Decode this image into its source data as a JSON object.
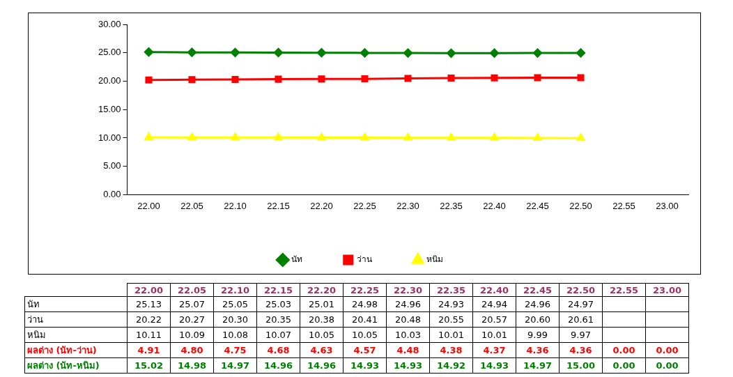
{
  "chart_data": {
    "type": "line",
    "categories": [
      "22.00",
      "22.05",
      "22.10",
      "22.15",
      "22.20",
      "22.25",
      "22.30",
      "22.35",
      "22.40",
      "22.45",
      "22.50",
      "22.55",
      "23.00"
    ],
    "ylim": [
      0,
      30
    ],
    "yticks": [
      {
        "value": 0,
        "label": "0.00"
      },
      {
        "value": 5,
        "label": "5.00"
      },
      {
        "value": 10,
        "label": "10.00"
      },
      {
        "value": 15,
        "label": "15.00"
      },
      {
        "value": 20,
        "label": "20.00"
      },
      {
        "value": 25,
        "label": "25.00"
      },
      {
        "value": 30,
        "label": "30.00"
      }
    ],
    "grid": false,
    "legend": "bottom",
    "line_style": "solid",
    "series": [
      {
        "name": "นัท",
        "marker": "diamond",
        "color": "#008000",
        "values": [
          25.13,
          25.07,
          25.05,
          25.03,
          25.01,
          24.98,
          24.96,
          24.93,
          24.94,
          24.96,
          24.97,
          null,
          null
        ],
        "value_labels": [
          "25.13",
          "25.07",
          "25.05",
          "25.03",
          "25.01",
          "24.98",
          "24.96",
          "24.93",
          "24.94",
          "24.96",
          "24.97",
          null,
          null
        ]
      },
      {
        "name": "ว่าน",
        "marker": "square",
        "color": "#ff0000",
        "values": [
          20.22,
          20.27,
          20.3,
          20.35,
          20.38,
          20.41,
          20.48,
          20.55,
          20.57,
          20.6,
          20.61,
          null,
          null
        ],
        "value_labels": [
          "20.22",
          "20.27",
          "20.30",
          "20.35",
          "20.38",
          "20.41",
          "20.48",
          "20.55",
          "20.57",
          "20.60",
          "20.61",
          null,
          null
        ]
      },
      {
        "name": "หนิม",
        "marker": "triangle",
        "color": "#ffff00",
        "values": [
          10.11,
          10.09,
          10.08,
          10.07,
          10.05,
          10.05,
          10.03,
          10.01,
          10.01,
          9.99,
          9.97,
          null,
          null
        ],
        "value_labels": [
          "10.11",
          "10.09",
          "10.08",
          "10.07",
          "10.05",
          "10.05",
          "10.03",
          "10.01",
          "10.01",
          "9.99",
          "9.97",
          null,
          null
        ]
      }
    ],
    "annotations": [
      "ผลต่าง (นัท-ว่าน)",
      "4.91",
      "4.80",
      "4.75",
      "4.68",
      "4.63",
      "4.57",
      "4.48",
      "4.38",
      "4.37",
      "4.36",
      "4.36",
      "0.00",
      "0.00",
      "ผลต่าง (นัท-หนิม)",
      "15.02",
      "14.98",
      "14.97",
      "14.96",
      "14.96",
      "14.93",
      "14.93",
      "14.92",
      "14.93",
      "14.97",
      "15.00",
      "0.00",
      "0.00"
    ]
  }
}
